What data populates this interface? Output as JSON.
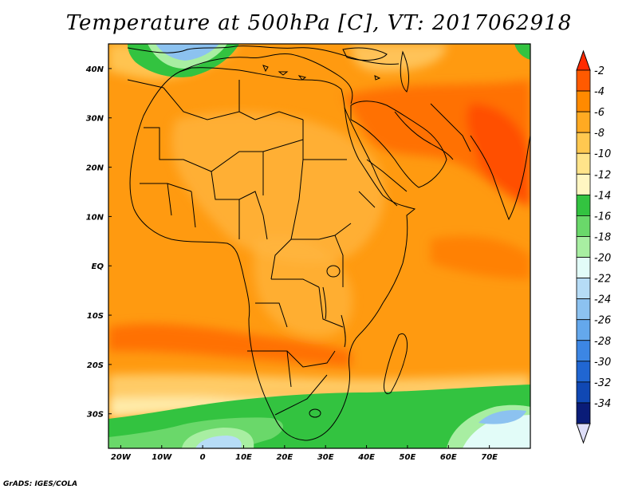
{
  "title": "Temperature at 500hPa [C], VT: 2017062918",
  "credit": "GrADS: IGES/COLA",
  "map": {
    "projection": "lat-lon",
    "lon_range": [
      -23,
      80
    ],
    "lat_range": [
      -37,
      45
    ],
    "lon_ticks": [
      {
        "value": -20,
        "label": "20W"
      },
      {
        "value": -10,
        "label": "10W"
      },
      {
        "value": 0,
        "label": "0"
      },
      {
        "value": 10,
        "label": "10E"
      },
      {
        "value": 20,
        "label": "20E"
      },
      {
        "value": 30,
        "label": "30E"
      },
      {
        "value": 40,
        "label": "40E"
      },
      {
        "value": 50,
        "label": "50E"
      },
      {
        "value": 60,
        "label": "60E"
      },
      {
        "value": 70,
        "label": "70E"
      }
    ],
    "lat_ticks": [
      {
        "value": 40,
        "label": "40N"
      },
      {
        "value": 30,
        "label": "30N"
      },
      {
        "value": 20,
        "label": "20N"
      },
      {
        "value": 10,
        "label": "10N"
      },
      {
        "value": 0,
        "label": "EQ"
      },
      {
        "value": -10,
        "label": "10S"
      },
      {
        "value": -20,
        "label": "20S"
      },
      {
        "value": -30,
        "label": "30S"
      }
    ]
  },
  "colorbar": {
    "bins": [
      {
        "label": "-2",
        "color": "#ff5a00"
      },
      {
        "label": "-4",
        "color": "#ff8a00"
      },
      {
        "label": "-6",
        "color": "#ffaa22"
      },
      {
        "label": "-8",
        "color": "#ffc850"
      },
      {
        "label": "-10",
        "color": "#ffe48a"
      },
      {
        "label": "-12",
        "color": "#fff6c2"
      },
      {
        "label": "-14",
        "color": "#33c340"
      },
      {
        "label": "-16",
        "color": "#6ad86a"
      },
      {
        "label": "-18",
        "color": "#a8eea2"
      },
      {
        "label": "-20",
        "color": "#e2fcf8"
      },
      {
        "label": "-22",
        "color": "#b6dcf6"
      },
      {
        "label": "-24",
        "color": "#8cc2f0"
      },
      {
        "label": "-26",
        "color": "#64a8ec"
      },
      {
        "label": "-28",
        "color": "#3c86e4"
      },
      {
        "label": "-30",
        "color": "#2066d2"
      },
      {
        "label": "-32",
        "color": "#1048b4"
      },
      {
        "label": "-34",
        "color": "#0a1c78"
      }
    ],
    "top_cap_color": "#ff2a00",
    "bottom_cap_color": "#dedef8"
  }
}
